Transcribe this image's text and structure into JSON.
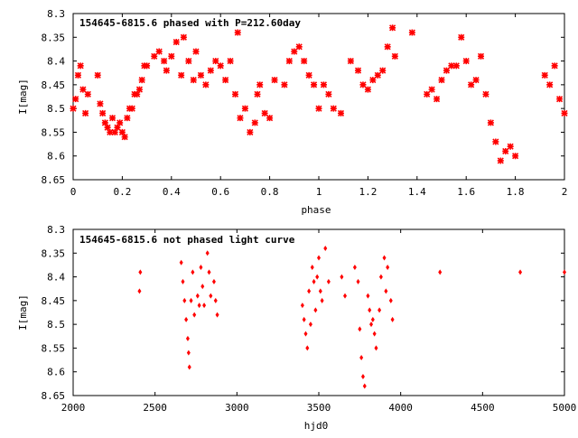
{
  "chart_data": [
    {
      "type": "scatter",
      "title": "154645-6815.6 phased with P=212.60day",
      "xlabel": "phase",
      "ylabel": "I[mag]",
      "xlim": [
        0,
        2
      ],
      "ylim": [
        8.3,
        8.65
      ],
      "y_inverted": true,
      "grid": false,
      "marker_color": "#ff0000",
      "x_ticks": [
        "0",
        "0.2",
        "0.4",
        "0.6",
        "0.8",
        "1",
        "1.2",
        "1.4",
        "1.6",
        "1.8",
        "2"
      ],
      "y_ticks": [
        "8.3",
        "8.35",
        "8.4",
        "8.45",
        "8.5",
        "8.55",
        "8.6",
        "8.65"
      ],
      "x": [
        0.0,
        0.01,
        0.02,
        0.03,
        0.04,
        0.05,
        0.06,
        0.1,
        0.11,
        0.12,
        0.13,
        0.14,
        0.15,
        0.16,
        0.17,
        0.18,
        0.19,
        0.2,
        0.21,
        0.22,
        0.23,
        0.24,
        0.25,
        0.26,
        0.27,
        0.28,
        0.29,
        0.3,
        0.33,
        0.35,
        0.37,
        0.38,
        0.4,
        0.42,
        0.44,
        0.45,
        0.47,
        0.49,
        0.5,
        0.52,
        0.54,
        0.56,
        0.58,
        0.6,
        0.62,
        0.64,
        0.66,
        0.67,
        0.68,
        0.7,
        0.72,
        0.74,
        0.75,
        0.76,
        0.78,
        0.8,
        0.82,
        0.86,
        0.88,
        0.9,
        0.92,
        0.94,
        0.96,
        0.98,
        1.0,
        1.02,
        1.04,
        1.06,
        1.09,
        1.13,
        1.16,
        1.18,
        1.2,
        1.22,
        1.24,
        1.26,
        1.28,
        1.3,
        1.31,
        1.38,
        1.44,
        1.46,
        1.48,
        1.5,
        1.52,
        1.54,
        1.56,
        1.58,
        1.6,
        1.62,
        1.64,
        1.66,
        1.68,
        1.7,
        1.72,
        1.74,
        1.76,
        1.78,
        1.8,
        1.92,
        1.94,
        1.96,
        1.98,
        2.0
      ],
      "y": [
        8.5,
        8.48,
        8.43,
        8.41,
        8.46,
        8.51,
        8.47,
        8.43,
        8.49,
        8.51,
        8.53,
        8.54,
        8.55,
        8.52,
        8.55,
        8.54,
        8.53,
        8.55,
        8.56,
        8.52,
        8.5,
        8.5,
        8.47,
        8.47,
        8.46,
        8.44,
        8.41,
        8.41,
        8.39,
        8.38,
        8.4,
        8.42,
        8.39,
        8.36,
        8.43,
        8.35,
        8.4,
        8.44,
        8.38,
        8.43,
        8.45,
        8.42,
        8.4,
        8.41,
        8.44,
        8.4,
        8.47,
        8.34,
        8.52,
        8.5,
        8.55,
        8.53,
        8.47,
        8.45,
        8.51,
        8.52,
        8.44,
        8.45,
        8.4,
        8.38,
        8.37,
        8.4,
        8.43,
        8.45,
        8.5,
        8.45,
        8.47,
        8.5,
        8.51,
        8.4,
        8.42,
        8.45,
        8.46,
        8.44,
        8.43,
        8.42,
        8.37,
        8.33,
        8.39,
        8.34,
        8.47,
        8.46,
        8.48,
        8.44,
        8.42,
        8.41,
        8.41,
        8.35,
        8.4,
        8.45,
        8.44,
        8.39,
        8.47,
        8.53,
        8.57,
        8.61,
        8.59,
        8.58,
        8.6,
        8.43,
        8.45,
        8.41,
        8.48,
        8.51
      ]
    },
    {
      "type": "scatter",
      "title": "154645-6815.6 not phased light curve",
      "xlabel": "hjd0",
      "ylabel": "I[mag]",
      "xlim": [
        2000,
        5000
      ],
      "ylim": [
        8.3,
        8.65
      ],
      "y_inverted": true,
      "grid": false,
      "marker_color": "#ff0000",
      "x_ticks": [
        "2000",
        "2500",
        "3000",
        "3500",
        "4000",
        "4500",
        "5000"
      ],
      "y_ticks": [
        "8.3",
        "8.35",
        "8.4",
        "8.45",
        "8.5",
        "8.55",
        "8.6",
        "8.65"
      ],
      "x": [
        2410,
        2405,
        2660,
        2670,
        2680,
        2690,
        2700,
        2705,
        2710,
        2720,
        2730,
        2740,
        2760,
        2770,
        2780,
        2790,
        2800,
        2820,
        2830,
        2840,
        2860,
        2870,
        2880,
        3400,
        3410,
        3420,
        3430,
        3440,
        3450,
        3460,
        3470,
        3480,
        3490,
        3500,
        3510,
        3520,
        3540,
        3560,
        3640,
        3660,
        3720,
        3740,
        3750,
        3760,
        3770,
        3780,
        3800,
        3810,
        3820,
        3830,
        3840,
        3850,
        3870,
        3880,
        3900,
        3910,
        3920,
        3940,
        3950,
        4240,
        4730,
        5000
      ],
      "y": [
        8.39,
        8.43,
        8.37,
        8.41,
        8.45,
        8.49,
        8.53,
        8.56,
        8.59,
        8.45,
        8.39,
        8.48,
        8.44,
        8.46,
        8.38,
        8.42,
        8.46,
        8.35,
        8.39,
        8.44,
        8.41,
        8.45,
        8.48,
        8.46,
        8.49,
        8.52,
        8.55,
        8.43,
        8.5,
        8.38,
        8.41,
        8.47,
        8.4,
        8.36,
        8.43,
        8.45,
        8.34,
        8.41,
        8.4,
        8.44,
        8.38,
        8.41,
        8.51,
        8.57,
        8.61,
        8.63,
        8.44,
        8.47,
        8.5,
        8.49,
        8.52,
        8.55,
        8.47,
        8.4,
        8.36,
        8.43,
        8.38,
        8.45,
        8.49,
        8.39,
        8.39,
        8.39
      ]
    }
  ]
}
